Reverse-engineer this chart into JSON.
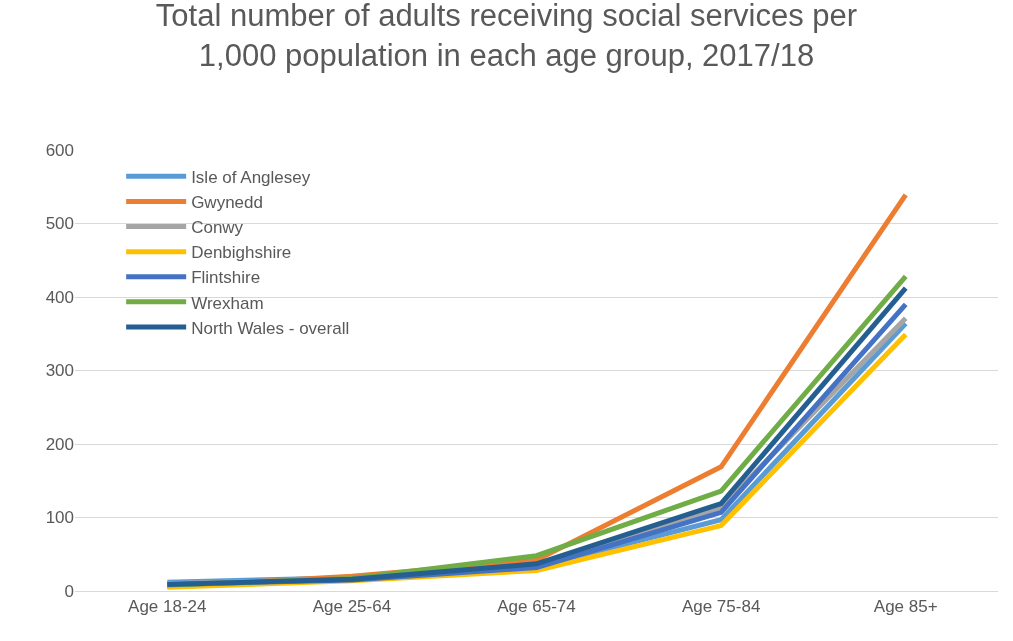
{
  "chart_data": {
    "type": "line",
    "title": "Total number of adults receiving social services per\n1,000 population in each age group, 2017/18",
    "categories": [
      "Age 18-24",
      "Age 25-64",
      "Age 65-74",
      "Age 75-84",
      "Age 85+"
    ],
    "series": [
      {
        "name": "Isle of Anglesey",
        "color": "#5b9bd5",
        "values": [
          12,
          18,
          33,
          97,
          364
        ]
      },
      {
        "name": "Gwynedd",
        "color": "#ed7d31",
        "values": [
          6,
          20,
          42,
          169,
          539
        ]
      },
      {
        "name": "Conwy",
        "color": "#a5a5a5",
        "values": [
          10,
          16,
          34,
          114,
          371
        ]
      },
      {
        "name": "Denbighshire",
        "color": "#ffc000",
        "values": [
          5,
          14,
          28,
          89,
          349
        ]
      },
      {
        "name": "Flintshire",
        "color": "#4472c4",
        "values": [
          9,
          15,
          32,
          107,
          390
        ]
      },
      {
        "name": "Wrexham",
        "color": "#70ad47",
        "values": [
          8,
          17,
          48,
          136,
          428
        ]
      },
      {
        "name": "North Wales - overall",
        "color": "#255e91",
        "values": [
          9,
          16,
          37,
          119,
          412
        ]
      }
    ],
    "ylim": [
      0,
      600
    ],
    "yticks": [
      0,
      100,
      200,
      300,
      400,
      500,
      600
    ],
    "grid": "y",
    "legend": "top left",
    "marker": "none",
    "line_style": "solid"
  }
}
